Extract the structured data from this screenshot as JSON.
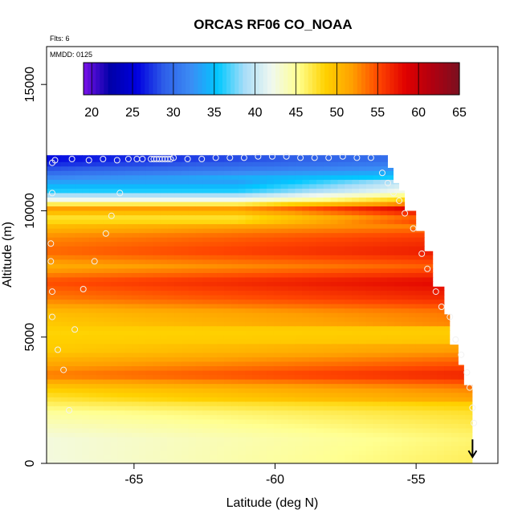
{
  "chart_data": {
    "type": "heatmap",
    "title": "ORCAS RF06 CO_NOAA",
    "flights_note": "Flts: 6",
    "date_note": "MMDD: 0125",
    "xlabel": "Latitude (deg N)",
    "ylabel": "Altitude (m)",
    "xlim": [
      -68.1,
      -52.1
    ],
    "ylim": [
      0,
      16500
    ],
    "x_ticks": [
      -65,
      -60,
      -55
    ],
    "x_tick_labels": [
      "-65",
      "-60",
      "-55"
    ],
    "y_ticks": [
      0,
      5000,
      10000,
      15000
    ],
    "y_tick_labels": [
      "0",
      "5000",
      "10000",
      "15000"
    ],
    "colorbar": {
      "min": 19,
      "max": 65,
      "ticks": [
        20,
        25,
        30,
        35,
        40,
        45,
        50,
        55,
        60,
        65
      ],
      "tick_labels": [
        "20",
        "25",
        "30",
        "35",
        "40",
        "45",
        "50",
        "55",
        "60",
        "65"
      ],
      "colors": [
        "#7a12e8",
        "#0000a8",
        "#0000e0",
        "#2f5fe8",
        "#3b8cf5",
        "#00c8ff",
        "#a8ddf8",
        "#f0f8f0",
        "#ffff90",
        "#ffd200",
        "#ffa000",
        "#ff4500",
        "#e00000",
        "#b00010",
        "#7a1020"
      ]
    },
    "profile_top_altitude_by_latitude": {
      "lat": [
        -68.1,
        -56.3,
        -56.0,
        -55.8,
        -55.6,
        -55.4,
        -55.0,
        -54.7,
        -54.4,
        -54.0,
        -53.8,
        -53.5,
        -53.3,
        -53.0
      ],
      "alt": [
        12200,
        12200,
        11700,
        11100,
        10800,
        10000,
        9200,
        8400,
        7000,
        5900,
        4700,
        3900,
        3100,
        250
      ]
    },
    "field_layers": [
      {
        "alt": 200,
        "value": 46.5
      },
      {
        "alt": 1000,
        "value": 46
      },
      {
        "alt": 2000,
        "value": 47.5
      },
      {
        "alt": 3000,
        "value": 51
      },
      {
        "alt": 3500,
        "value": 55
      },
      {
        "alt": 4000,
        "value": 52.5
      },
      {
        "alt": 4500,
        "value": 50
      },
      {
        "alt": 5200,
        "value": 49
      },
      {
        "alt": 6000,
        "value": 50
      },
      {
        "alt": 6500,
        "value": 53
      },
      {
        "alt": 7200,
        "value": 55
      },
      {
        "alt": 7800,
        "value": 51
      },
      {
        "alt": 8400,
        "value": 54
      },
      {
        "alt": 9000,
        "value": 52.5
      },
      {
        "alt": 9400,
        "value": 50
      },
      {
        "alt": 9700,
        "value": 47
      },
      {
        "alt": 10100,
        "value": 52
      },
      {
        "alt": 10400,
        "value": 43
      },
      {
        "alt": 10800,
        "value": 36
      },
      {
        "alt": 11200,
        "value": 33
      },
      {
        "alt": 11600,
        "value": 29
      },
      {
        "alt": 12000,
        "value": 26
      }
    ],
    "observation_points": [
      {
        "lat": -67.9,
        "alt": 11900
      },
      {
        "lat": -67.9,
        "alt": 10700
      },
      {
        "lat": -67.95,
        "alt": 8700
      },
      {
        "lat": -67.95,
        "alt": 8000
      },
      {
        "lat": -67.9,
        "alt": 6800
      },
      {
        "lat": -67.9,
        "alt": 5800
      },
      {
        "lat": -67.7,
        "alt": 4500
      },
      {
        "lat": -67.5,
        "alt": 3700
      },
      {
        "lat": -67.3,
        "alt": 2100
      },
      {
        "lat": -66.4,
        "alt": 8000
      },
      {
        "lat": -66.0,
        "alt": 9100
      },
      {
        "lat": -65.5,
        "alt": 10700
      },
      {
        "lat": -65.8,
        "alt": 9800
      },
      {
        "lat": -66.8,
        "alt": 6900
      },
      {
        "lat": -67.1,
        "alt": 5300
      },
      {
        "lat": -67.8,
        "alt": 12000
      },
      {
        "lat": -67.2,
        "alt": 12050
      },
      {
        "lat": -66.6,
        "alt": 12000
      },
      {
        "lat": -66.1,
        "alt": 12050
      },
      {
        "lat": -65.6,
        "alt": 12000
      },
      {
        "lat": -65.2,
        "alt": 12050
      },
      {
        "lat": -64.9,
        "alt": 12050
      },
      {
        "lat": -64.7,
        "alt": 12050
      },
      {
        "lat": -64.4,
        "alt": 12050
      },
      {
        "lat": -64.3,
        "alt": 12050
      },
      {
        "lat": -64.2,
        "alt": 12050
      },
      {
        "lat": -64.1,
        "alt": 12050
      },
      {
        "lat": -64.0,
        "alt": 12050
      },
      {
        "lat": -63.9,
        "alt": 12050
      },
      {
        "lat": -63.8,
        "alt": 12050
      },
      {
        "lat": -63.7,
        "alt": 12050
      },
      {
        "lat": -63.6,
        "alt": 12100
      },
      {
        "lat": -63.1,
        "alt": 12050
      },
      {
        "lat": -62.6,
        "alt": 12050
      },
      {
        "lat": -62.1,
        "alt": 12100
      },
      {
        "lat": -61.6,
        "alt": 12100
      },
      {
        "lat": -61.1,
        "alt": 12100
      },
      {
        "lat": -60.6,
        "alt": 12150
      },
      {
        "lat": -60.1,
        "alt": 12150
      },
      {
        "lat": -59.6,
        "alt": 12150
      },
      {
        "lat": -59.1,
        "alt": 12100
      },
      {
        "lat": -58.6,
        "alt": 12100
      },
      {
        "lat": -58.1,
        "alt": 12100
      },
      {
        "lat": -57.6,
        "alt": 12150
      },
      {
        "lat": -57.1,
        "alt": 12100
      },
      {
        "lat": -56.6,
        "alt": 12100
      },
      {
        "lat": -56.2,
        "alt": 11500
      },
      {
        "lat": -56.0,
        "alt": 11100
      },
      {
        "lat": -55.8,
        "alt": 10700
      },
      {
        "lat": -55.6,
        "alt": 10400
      },
      {
        "lat": -55.4,
        "alt": 9900
      },
      {
        "lat": -55.1,
        "alt": 9300
      },
      {
        "lat": -54.8,
        "alt": 8300
      },
      {
        "lat": -54.6,
        "alt": 7700
      },
      {
        "lat": -54.3,
        "alt": 6800
      },
      {
        "lat": -54.1,
        "alt": 6200
      },
      {
        "lat": -53.8,
        "alt": 5800
      },
      {
        "lat": -53.6,
        "alt": 4900
      },
      {
        "lat": -53.4,
        "alt": 4300
      },
      {
        "lat": -53.2,
        "alt": 3600
      },
      {
        "lat": -53.1,
        "alt": 3000
      },
      {
        "lat": -53.0,
        "alt": 2200
      },
      {
        "lat": -52.95,
        "alt": 1600
      }
    ],
    "aircraft_position": {
      "lat": -53.0,
      "alt": 250
    }
  }
}
